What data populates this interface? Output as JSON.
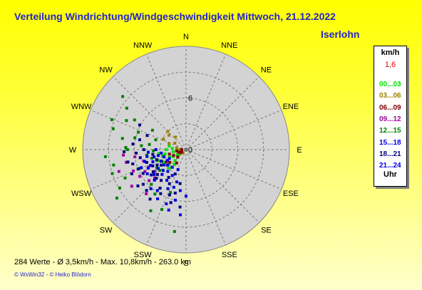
{
  "header": {
    "title": "Verteilung Windrichtung/Windgeschwindigkeit  Mittwoch, 21.12.2022",
    "location": "Iserlohn"
  },
  "legend": {
    "unit": "km/h",
    "calm_value": "1,6",
    "footer": "Uhr",
    "bands": [
      {
        "label": "00...03",
        "color": "#00e000"
      },
      {
        "label": "03...06",
        "color": "#a08000"
      },
      {
        "label": "06...09",
        "color": "#800000"
      },
      {
        "label": "09...12",
        "color": "#a000a0"
      },
      {
        "label": "12...15",
        "color": "#008000"
      },
      {
        "label": "15...18",
        "color": "#0000e0"
      },
      {
        "label": "18...21",
        "color": "#000080"
      },
      {
        "label": "21...24",
        "color": "#0000e0"
      }
    ]
  },
  "footer": {
    "stats": "284 Werte   -   Ø 3,5km/h  -  Max. 10,8km/h   -   263.0 km",
    "credits": "© WsWin32  -  © Heiko Blödorn"
  },
  "chart_data": {
    "type": "scatter",
    "projection": "polar wind rose",
    "directions": [
      "N",
      "NNE",
      "NE",
      "ENE",
      "E",
      "ESE",
      "SE",
      "SSE",
      "S",
      "SSW",
      "SW",
      "WSW",
      "W",
      "WNW",
      "NW",
      "NNW"
    ],
    "ring_labels": [
      "6",
      "0"
    ],
    "rlim": [
      0,
      12
    ],
    "grid": true,
    "legend_placement": "right",
    "point_size": "small squares",
    "series": [
      {
        "name": "00...03",
        "color": "#00e000",
        "points": [
          [
            250,
            0.8
          ],
          [
            238,
            1.2
          ],
          [
            260,
            1.5
          ],
          [
            225,
            1.8
          ],
          [
            245,
            2.1
          ],
          [
            270,
            2.3
          ],
          [
            230,
            2.6
          ],
          [
            255,
            2.8
          ],
          [
            240,
            3.0
          ],
          [
            265,
            1.0
          ],
          [
            218,
            2.2
          ],
          [
            248,
            3.4
          ],
          [
            275,
            1.6
          ],
          [
            235,
            0.9
          ],
          [
            282,
            2.0
          ],
          [
            228,
            3.6
          ],
          [
            258,
            2.5
          ],
          [
            242,
            1.7
          ],
          [
            262,
            3.2
          ],
          [
            222,
            2.9
          ]
        ]
      },
      {
        "name": "03...06",
        "color": "#a08000",
        "points": [
          [
            225,
            0.5
          ],
          [
            300,
            1.5
          ],
          [
            290,
            2.1
          ],
          [
            310,
            2.6
          ],
          [
            280,
            1.1
          ],
          [
            235,
            0.8
          ],
          [
            315,
            3.0
          ],
          [
            270,
            0.7
          ],
          [
            320,
            1.9
          ],
          [
            295,
            2.9
          ]
        ]
      },
      {
        "name": "06...09",
        "color": "#800000",
        "points": [
          [
            240,
            0.6
          ],
          [
            250,
            0.9
          ],
          [
            228,
            1.3
          ],
          [
            262,
            1.1
          ],
          [
            232,
            2.4
          ],
          [
            245,
            1.6
          ],
          [
            215,
            1.9
          ],
          [
            270,
            0.5
          ],
          [
            255,
            2.0
          ],
          [
            238,
            2.7
          ]
        ]
      },
      {
        "name": "09...12",
        "color": "#a000a0",
        "points": [
          [
            235,
            4.4
          ],
          [
            230,
            5.6
          ],
          [
            240,
            6.2
          ],
          [
            248,
            6.6
          ],
          [
            255,
            5.1
          ],
          [
            262,
            6.0
          ],
          [
            222,
            6.9
          ],
          [
            245,
            4.8
          ],
          [
            258,
            7.1
          ],
          [
            236,
            7.6
          ],
          [
            242,
            5.4
          ],
          [
            228,
            4.9
          ],
          [
            252,
            8.2
          ],
          [
            265,
            7.3
          ]
        ]
      },
      {
        "name": "12...15",
        "color": "#008000",
        "points": [
          [
            286,
            8.8
          ],
          [
            292,
            9.3
          ],
          [
            280,
            7.5
          ],
          [
            300,
            6.9
          ],
          [
            245,
            7.8
          ],
          [
            252,
            9.0
          ],
          [
            258,
            8.6
          ],
          [
            240,
            8.9
          ],
          [
            265,
            9.4
          ],
          [
            272,
            7.0
          ],
          [
            283,
            6.1
          ],
          [
            296,
            7.7
          ],
          [
            305,
            8.4
          ],
          [
            310,
            9.6
          ],
          [
            235,
            9.8
          ],
          [
            248,
            5.8
          ],
          [
            262,
            4.6
          ],
          [
            275,
            5.2
          ],
          [
            268,
            3.8
          ],
          [
            225,
            5.7
          ],
          [
            215,
            6.3
          ],
          [
            200,
            5.3
          ],
          [
            188,
            9.6
          ],
          [
            210,
            8.2
          ],
          [
            202,
            7.5
          ],
          [
            278,
            4.3
          ],
          [
            288,
            3.7
          ],
          [
            232,
            3.9
          ],
          [
            244,
            3.1
          ],
          [
            256,
            4.1
          ],
          [
            290,
            5.9
          ],
          [
            300,
            4.5
          ],
          [
            270,
            6.8
          ],
          [
            250,
            3.6
          ],
          [
            238,
            4.0
          ]
        ]
      },
      {
        "name": "15...18",
        "color": "#0000e0",
        "points": [
          [
            240,
            2.5
          ],
          [
            245,
            3.2
          ],
          [
            236,
            3.9
          ],
          [
            250,
            4.1
          ],
          [
            258,
            3.3
          ],
          [
            232,
            4.7
          ],
          [
            228,
            3.6
          ],
          [
            262,
            2.9
          ],
          [
            246,
            4.5
          ],
          [
            254,
            5.0
          ],
          [
            238,
            5.3
          ],
          [
            266,
            4.4
          ],
          [
            224,
            4.0
          ],
          [
            242,
            2.2
          ],
          [
            230,
            2.8
          ],
          [
            248,
            5.6
          ],
          [
            257,
            3.8
          ],
          [
            235,
            3.1
          ],
          [
            244,
            4.9
          ],
          [
            252,
            2.7
          ],
          [
            260,
            4.6
          ],
          [
            226,
            5.1
          ],
          [
            270,
            3.5
          ],
          [
            220,
            3.3
          ],
          [
            212,
            4.2
          ],
          [
            205,
            5.0
          ],
          [
            198,
            4.6
          ],
          [
            215,
            5.8
          ],
          [
            208,
            3.4
          ],
          [
            196,
            3.9
          ],
          [
            192,
            6.0
          ],
          [
            188,
            4.8
          ],
          [
            218,
            2.6
          ],
          [
            202,
            2.5
          ],
          [
            185,
            7.6
          ],
          [
            210,
            6.6
          ],
          [
            180,
            5.4
          ],
          [
            222,
            6.1
          ],
          [
            200,
            6.7
          ],
          [
            196,
            7.3
          ]
        ]
      },
      {
        "name": "18...21",
        "color": "#000080",
        "points": [
          [
            238,
            3.4
          ],
          [
            244,
            4.3
          ],
          [
            251,
            3.6
          ],
          [
            234,
            5.0
          ],
          [
            229,
            4.4
          ],
          [
            260,
            5.4
          ],
          [
            248,
            6.0
          ],
          [
            241,
            5.7
          ],
          [
            255,
            6.4
          ],
          [
            266,
            5.8
          ],
          [
            231,
            6.4
          ],
          [
            246,
            6.9
          ],
          [
            236,
            4.6
          ],
          [
            252,
            4.8
          ],
          [
            226,
            4.8
          ],
          [
            219,
            4.6
          ],
          [
            214,
            5.4
          ],
          [
            262,
            3.9
          ],
          [
            270,
            4.9
          ],
          [
            276,
            6.2
          ],
          [
            282,
            5.5
          ],
          [
            268,
            7.2
          ],
          [
            242,
            3.8
          ],
          [
            258,
            6.9
          ],
          [
            233,
            7.0
          ],
          [
            224,
            6.6
          ],
          [
            216,
            7.1
          ],
          [
            210,
            5.9
          ],
          [
            290,
            4.8
          ],
          [
            298,
            6.1
          ],
          [
            206,
            4.4
          ],
          [
            200,
            5.6
          ],
          [
            194,
            5.2
          ],
          [
            212,
            3.8
          ],
          [
            204,
            3.1
          ],
          [
            196,
            6.4
          ],
          [
            190,
            4.0
          ],
          [
            186,
            6.7
          ]
        ]
      }
    ]
  }
}
